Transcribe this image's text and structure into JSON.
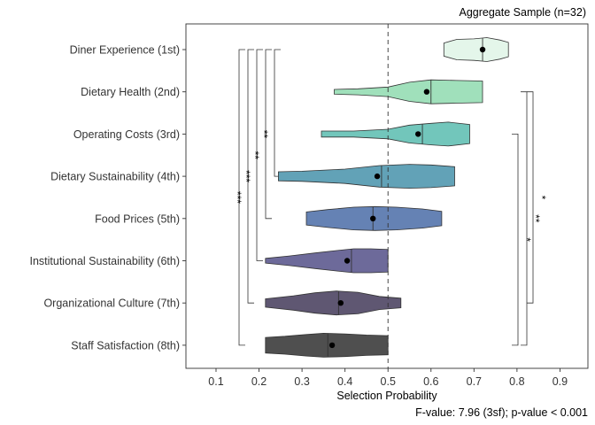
{
  "chart_data": {
    "type": "violin",
    "subtitle": "Aggregate Sample (n=32)",
    "xlabel": "Selection Probability",
    "caption": "F-value: 7.96 (3sf); p-value < 0.001",
    "xlim": [
      0.03,
      0.965
    ],
    "x_ticks": [
      "0.1",
      "0.2",
      "0.3",
      "0.4",
      "0.5",
      "0.6",
      "0.7",
      "0.8",
      "0.9"
    ],
    "reference_line": 0.5,
    "categories": [
      "Diner Experience (1st)",
      "Dietary Health (2nd)",
      "Operating Costs (3rd)",
      "Dietary Sustainability (4th)",
      "Food Prices (5th)",
      "Institutional Sustainability (6th)",
      "Organizational Culture (7th)",
      "Staff Satisfaction (8th)"
    ],
    "violins": [
      {
        "min": 0.63,
        "max": 0.78,
        "median": 0.72,
        "mean": 0.72,
        "color": "#e4f6ea",
        "profile": [
          [
            0.63,
            0.55
          ],
          [
            0.66,
            0.85
          ],
          [
            0.7,
            0.9
          ],
          [
            0.73,
            1.0
          ],
          [
            0.76,
            0.8
          ],
          [
            0.78,
            0.6
          ]
        ]
      },
      {
        "min": 0.375,
        "max": 0.72,
        "median": 0.6,
        "mean": 0.59,
        "color": "#a0e0bb",
        "profile": [
          [
            0.375,
            0.2
          ],
          [
            0.43,
            0.25
          ],
          [
            0.5,
            0.4
          ],
          [
            0.55,
            0.8
          ],
          [
            0.6,
            1.0
          ],
          [
            0.66,
            0.95
          ],
          [
            0.72,
            0.9
          ]
        ]
      },
      {
        "min": 0.345,
        "max": 0.69,
        "median": 0.58,
        "mean": 0.57,
        "color": "#72c6bb",
        "profile": [
          [
            0.345,
            0.25
          ],
          [
            0.42,
            0.25
          ],
          [
            0.5,
            0.4
          ],
          [
            0.55,
            0.75
          ],
          [
            0.6,
            0.9
          ],
          [
            0.64,
            1.0
          ],
          [
            0.69,
            0.8
          ]
        ]
      },
      {
        "min": 0.245,
        "max": 0.655,
        "median": 0.485,
        "mean": 0.475,
        "color": "#62a2b7",
        "profile": [
          [
            0.245,
            0.38
          ],
          [
            0.3,
            0.42
          ],
          [
            0.4,
            0.6
          ],
          [
            0.48,
            0.9
          ],
          [
            0.55,
            1.0
          ],
          [
            0.6,
            0.95
          ],
          [
            0.655,
            0.8
          ]
        ]
      },
      {
        "min": 0.31,
        "max": 0.625,
        "median": 0.465,
        "mean": 0.465,
        "color": "#6582b4",
        "profile": [
          [
            0.31,
            0.55
          ],
          [
            0.36,
            0.75
          ],
          [
            0.42,
            0.95
          ],
          [
            0.47,
            1.0
          ],
          [
            0.52,
            0.95
          ],
          [
            0.58,
            0.8
          ],
          [
            0.625,
            0.6
          ]
        ]
      },
      {
        "min": 0.215,
        "max": 0.5,
        "median": 0.415,
        "mean": 0.405,
        "color": "#6d6a9a",
        "profile": [
          [
            0.215,
            0.2
          ],
          [
            0.27,
            0.4
          ],
          [
            0.33,
            0.65
          ],
          [
            0.38,
            0.85
          ],
          [
            0.42,
            1.0
          ],
          [
            0.46,
            1.0
          ],
          [
            0.5,
            0.95
          ]
        ]
      },
      {
        "min": 0.215,
        "max": 0.53,
        "median": 0.385,
        "mean": 0.39,
        "color": "#5f5772",
        "profile": [
          [
            0.215,
            0.35
          ],
          [
            0.28,
            0.6
          ],
          [
            0.33,
            0.85
          ],
          [
            0.38,
            1.0
          ],
          [
            0.43,
            0.9
          ],
          [
            0.48,
            0.55
          ],
          [
            0.53,
            0.4
          ]
        ]
      },
      {
        "min": 0.215,
        "max": 0.5,
        "median": 0.36,
        "mean": 0.37,
        "color": "#4f4f4f",
        "profile": [
          [
            0.215,
            0.65
          ],
          [
            0.26,
            0.75
          ],
          [
            0.31,
            0.9
          ],
          [
            0.35,
            1.0
          ],
          [
            0.4,
            0.95
          ],
          [
            0.45,
            0.85
          ],
          [
            0.5,
            0.8
          ]
        ]
      }
    ],
    "significance": [
      {
        "side": "left",
        "from": "Diner Experience (1st)",
        "to": "Staff Satisfaction (8th)",
        "label": "***"
      },
      {
        "side": "left",
        "from": "Diner Experience (1st)",
        "to": "Organizational Culture (7th)",
        "label": "***"
      },
      {
        "side": "left",
        "from": "Diner Experience (1st)",
        "to": "Institutional Sustainability (6th)",
        "label": "**"
      },
      {
        "side": "left",
        "from": "Diner Experience (1st)",
        "to": "Food Prices (5th)",
        "label": "**"
      },
      {
        "side": "left",
        "from": "Diner Experience (1st)",
        "to": "Dietary Sustainability (4th)",
        "label": ""
      },
      {
        "side": "right",
        "from": "Operating Costs (3rd)",
        "to": "Staff Satisfaction (8th)",
        "label": "*"
      },
      {
        "side": "right",
        "from": "Dietary Health (2nd)",
        "to": "Staff Satisfaction (8th)",
        "label": "**"
      },
      {
        "side": "right",
        "from": "Dietary Health (2nd)",
        "to": "Organizational Culture (7th)",
        "label": "*"
      }
    ]
  }
}
